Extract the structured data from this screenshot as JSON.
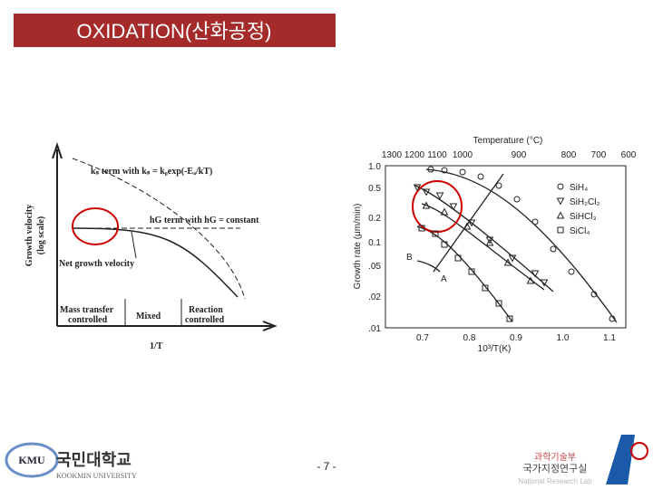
{
  "header": {
    "title": "OXIDATION(산화공정)"
  },
  "left_figure": {
    "y_label_1": "Growth velocity",
    "y_label_2": "(log scale)",
    "x_label": "1/T",
    "curve_ks": "kₛ term with kₛ = k₀exp(-Eₐ/kT)",
    "curve_hg": "hG term with hG = constant",
    "curve_net": "Net growth velocity",
    "regions": [
      "Mass transfer",
      "controlled",
      "Mixed",
      "Reaction",
      "controlled"
    ]
  },
  "right_figure": {
    "top_label": "Temperature (°C)",
    "top_ticks": [
      "1300",
      "1200",
      "1100",
      "1000",
      "900",
      "800",
      "700",
      "600"
    ],
    "y_label": "Growth rate (μm/min)",
    "y_ticks": [
      "1.0",
      "0.5",
      "0.2",
      "0.1",
      ".05",
      ".02",
      ".01"
    ],
    "x_label": "10³/T(K)",
    "x_ticks": [
      "0.7",
      "0.8",
      "0.9",
      "1.0",
      "1.1"
    ],
    "legend": [
      "SiH₄",
      "SiH₂Cl₂",
      "SiHCl₃",
      "SiCl₄"
    ],
    "annotations": [
      "B",
      "A"
    ]
  },
  "footer": {
    "logo": "KMU",
    "university_kr": "국민대학교",
    "university_en": "KOOKMIN UNIVERSITY",
    "page": "- 7 -",
    "ministry": "과학기술부",
    "lab_kr": "국가지정연구실",
    "lab_en": "National Research Lab"
  }
}
